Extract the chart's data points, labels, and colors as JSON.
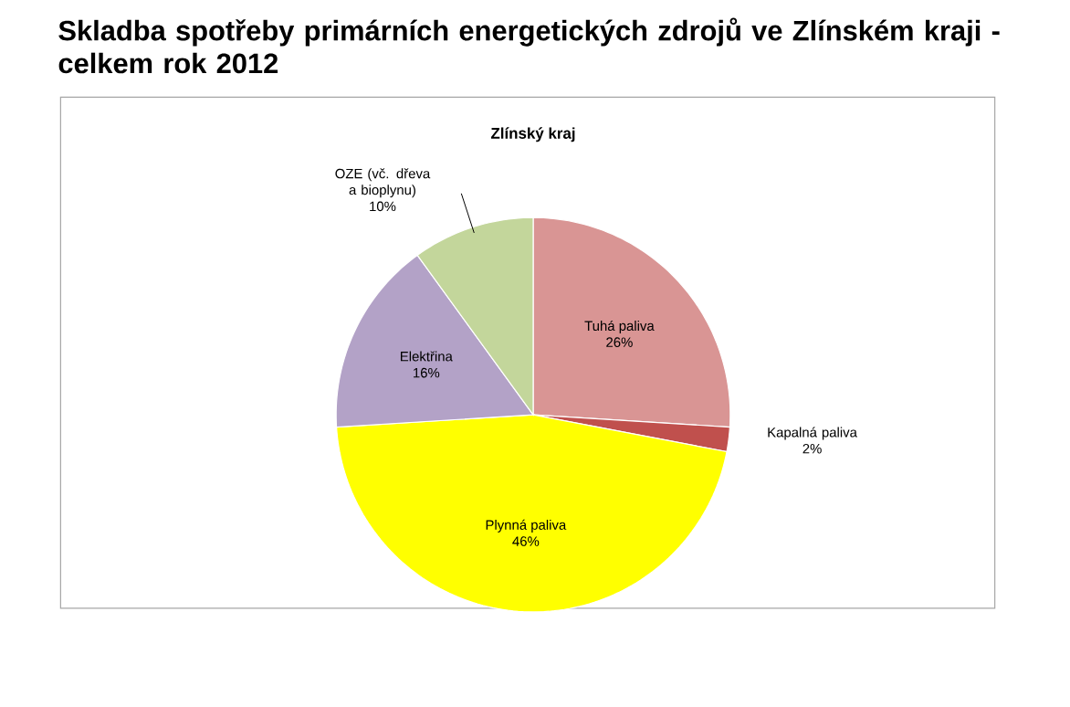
{
  "chart_data": {
    "type": "pie",
    "title": "Skladba spotřeby primárních energetických zdrojů ve Zlínském kraji - celkem rok 2012",
    "subtitle": "Zlínský kraj",
    "categories": [
      "Tuhá paliva",
      "Kapalná paliva",
      "Plynná paliva",
      "Elektřina",
      "OZE (vč. dřeva a bioplynu)"
    ],
    "values": [
      26,
      2,
      46,
      16,
      10
    ],
    "colors": [
      "#d99594",
      "#c0504d",
      "#ffff00",
      "#b3a2c7",
      "#c3d69b"
    ],
    "value_labels": [
      "26%",
      "2%",
      "46%",
      "16%",
      "10%"
    ]
  }
}
